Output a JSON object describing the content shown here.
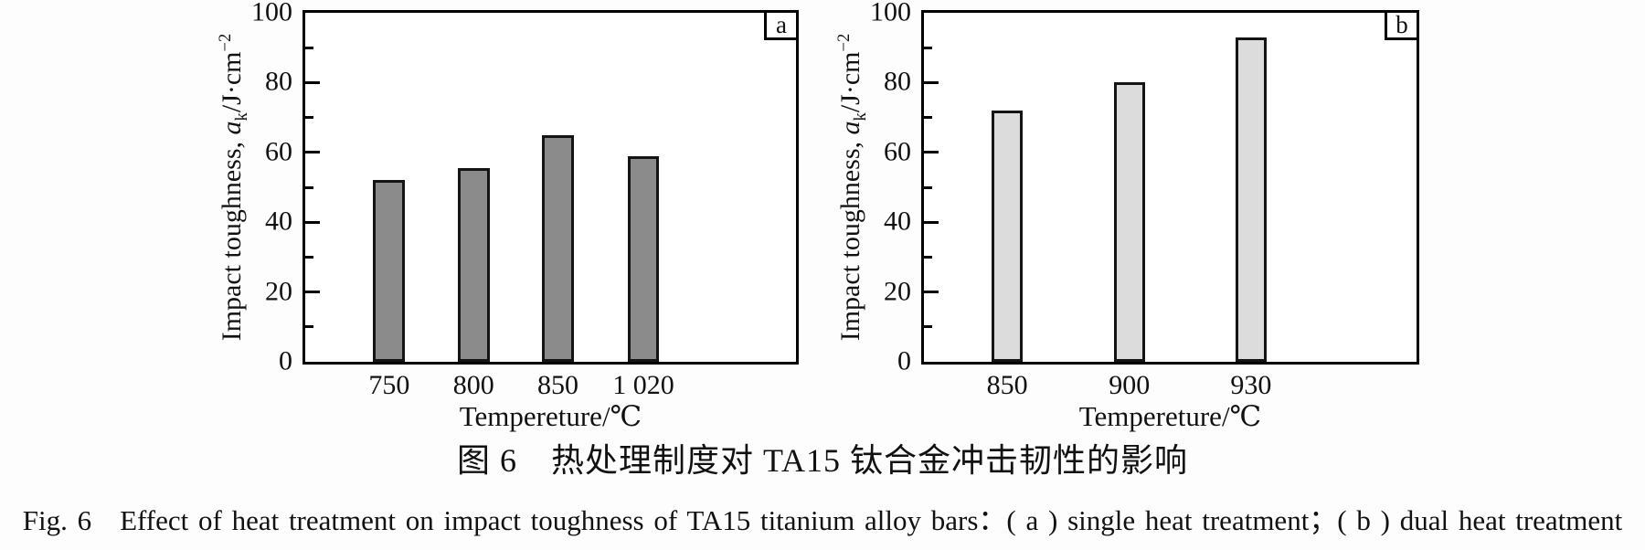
{
  "figure": {
    "caption_zh": "图 6　热处理制度对 TA15 钛合金冲击韧性的影响",
    "caption_en": "Fig. 6　Effect of heat treatment on impact toughness of TA15 titanium alloy bars：( a ) single heat treatment；( b ) dual heat treatment"
  },
  "chart_data": [
    {
      "type": "bar",
      "panel_label": "a",
      "title": "",
      "categories": [
        "750",
        "800",
        "850",
        "1 020"
      ],
      "values": [
        52,
        55.5,
        65,
        59
      ],
      "xlabel": "Tempereture/℃",
      "ylabel": "Impact toughness, a_k/J·cm^-2",
      "ylabel_parts": {
        "prefix": "Impact toughness, ",
        "sym": "a",
        "sub": "k",
        "mid": "/J·cm",
        "sup": "−2"
      },
      "ylim": [
        0,
        100
      ],
      "yticks_major": [
        0,
        20,
        40,
        60,
        80,
        100
      ],
      "yticks_minor": [
        10,
        30,
        50,
        70,
        90
      ],
      "grid": false,
      "legend": "none",
      "bar_fill": "#8b8b8b",
      "bar_edge": "#141414",
      "bar_centers_pct": [
        17.1,
        34.3,
        51.5,
        68.9
      ],
      "bar_width_pct": 6.5
    },
    {
      "type": "bar",
      "panel_label": "b",
      "title": "",
      "categories": [
        "850",
        "900",
        "930"
      ],
      "values": [
        72,
        80,
        93
      ],
      "xlabel": "Tempereture/℃",
      "ylabel": "Impact toughness, a_k/J·cm^-2",
      "ylabel_parts": {
        "prefix": "Impact toughness, ",
        "sym": "a",
        "sub": "k",
        "mid": "/J·cm",
        "sup": "−2"
      },
      "ylim": [
        0,
        100
      ],
      "yticks_major": [
        0,
        20,
        40,
        60,
        80,
        100
      ],
      "yticks_minor": [
        10,
        30,
        50,
        70,
        90
      ],
      "grid": false,
      "legend": "none",
      "bar_fill": "#dcdcdc",
      "bar_edge": "#141414",
      "bar_centers_pct": [
        16.9,
        41.7,
        66.4
      ],
      "bar_width_pct": 6.4
    }
  ]
}
